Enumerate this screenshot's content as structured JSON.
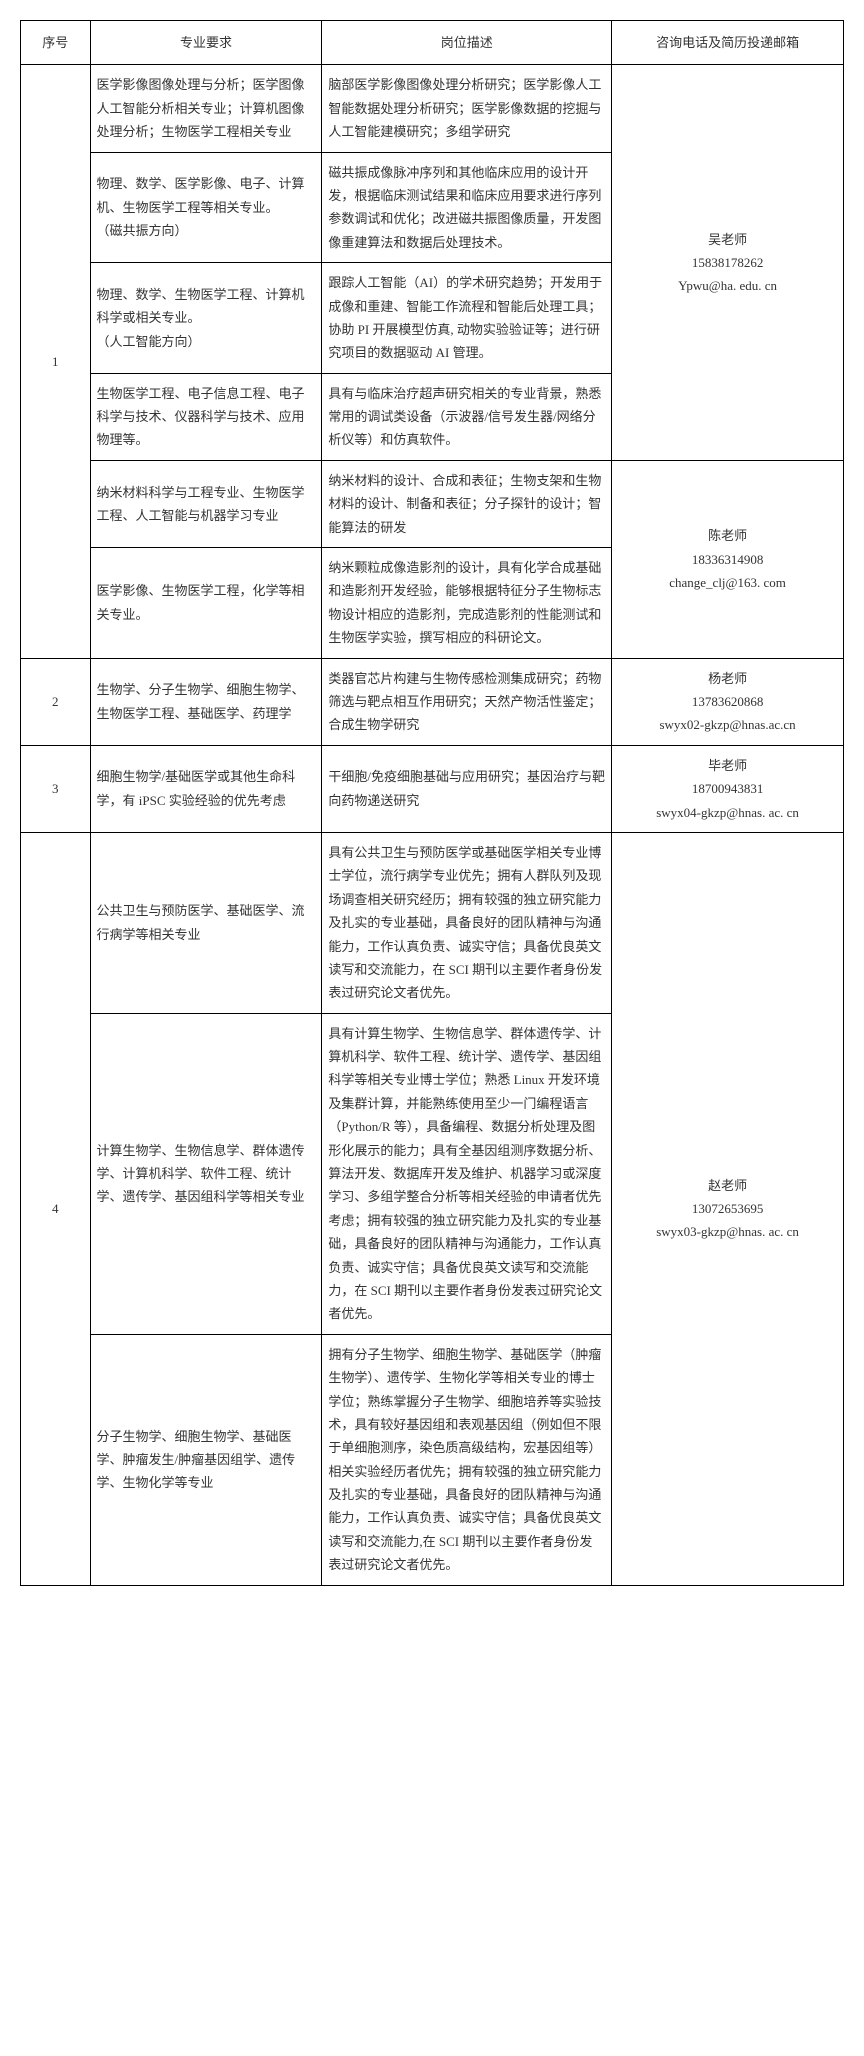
{
  "headers": {
    "idx": "序号",
    "major": "专业要求",
    "desc": "岗位描述",
    "contact": "咨询电话及简历投递邮箱"
  },
  "rows": [
    {
      "idx": "1",
      "contact": "吴老师\n15838178262\nYpwu@ha. edu. cn",
      "subs": [
        {
          "major": "医学影像图像处理与分析；医学图像人工智能分析相关专业；计算机图像处理分析；生物医学工程相关专业",
          "desc": "脑部医学影像图像处理分析研究；医学影像人工智能数据处理分析研究；医学影像数据的挖掘与人工智能建模研究；多组学研究"
        },
        {
          "major": "物理、数学、医学影像、电子、计算机、生物医学工程等相关专业。\n（磁共振方向）",
          "desc": "磁共振成像脉冲序列和其他临床应用的设计开发，根据临床测试结果和临床应用要求进行序列参数调试和优化；改进磁共振图像质量，开发图像重建算法和数据后处理技术。"
        },
        {
          "major": "物理、数学、生物医学工程、计算机科学或相关专业。\n（人工智能方向）",
          "desc": "跟踪人工智能（AI）的学术研究趋势；开发用于成像和重建、智能工作流程和智能后处理工具；协助 PI 开展模型仿真, 动物实验验证等；进行研究项目的数据驱动 AI 管理。"
        },
        {
          "major": "生物医学工程、电子信息工程、电子科学与技术、仪器科学与技术、应用物理等。",
          "desc": "具有与临床治疗超声研究相关的专业背景，熟悉常用的调试类设备（示波器/信号发生器/网络分析仪等）和仿真软件。"
        }
      ]
    },
    {
      "idx": "",
      "contact": "陈老师\n18336314908\nchange_clj@163. com",
      "subs": [
        {
          "major": "纳米材料科学与工程专业、生物医学工程、人工智能与机器学习专业",
          "desc": "纳米材料的设计、合成和表征；生物支架和生物材料的设计、制备和表征；分子探针的设计；智能算法的研发"
        },
        {
          "major": "医学影像、生物医学工程，化学等相关专业。",
          "desc": "纳米颗粒成像造影剂的设计，具有化学合成基础和造影剂开发经验，能够根据特征分子生物标志物设计相应的造影剂，完成造影剂的性能测试和生物医学实验，撰写相应的科研论文。"
        }
      ]
    },
    {
      "idx": "2",
      "contact": "杨老师\n13783620868\nswyx02-gkzp@hnas.ac.cn",
      "subs": [
        {
          "major": "生物学、分子生物学、细胞生物学、生物医学工程、基础医学、药理学",
          "desc": "类器官芯片构建与生物传感检测集成研究；药物筛选与靶点相互作用研究；天然产物活性鉴定；合成生物学研究"
        }
      ]
    },
    {
      "idx": "3",
      "contact": "毕老师\n18700943831\nswyx04-gkzp@hnas. ac. cn",
      "subs": [
        {
          "major": "细胞生物学/基础医学或其他生命科学，有 iPSC 实验经验的优先考虑",
          "desc": "干细胞/免疫细胞基础与应用研究；基因治疗与靶向药物递送研究"
        }
      ]
    },
    {
      "idx": "4",
      "contact": "赵老师\n13072653695\nswyx03-gkzp@hnas. ac. cn",
      "subs": [
        {
          "major": "公共卫生与预防医学、基础医学、流行病学等相关专业",
          "desc": "具有公共卫生与预防医学或基础医学相关专业博士学位，流行病学专业优先；拥有人群队列及现场调查相关研究经历；拥有较强的独立研究能力及扎实的专业基础，具备良好的团队精神与沟通能力，工作认真负责、诚实守信；具备优良英文读写和交流能力，在 SCI 期刊以主要作者身份发表过研究论文者优先。"
        },
        {
          "major": "计算生物学、生物信息学、群体遗传学、计算机科学、软件工程、统计学、遗传学、基因组科学等相关专业",
          "desc": "具有计算生物学、生物信息学、群体遗传学、计算机科学、软件工程、统计学、遗传学、基因组科学等相关专业博士学位；熟悉 Linux 开发环境及集群计算，并能熟练使用至少一门编程语言（Python/R 等），具备编程、数据分析处理及图形化展示的能力；具有全基因组测序数据分析、算法开发、数据库开发及维护、机器学习或深度学习、多组学整合分析等相关经验的申请者优先考虑；拥有较强的独立研究能力及扎实的专业基础，具备良好的团队精神与沟通能力，工作认真负责、诚实守信；具备优良英文读写和交流能力，在 SCI 期刊以主要作者身份发表过研究论文者优先。"
        },
        {
          "major": "分子生物学、细胞生物学、基础医学、肿瘤发生/肿瘤基因组学、遗传学、生物化学等专业",
          "desc": "拥有分子生物学、细胞生物学、基础医学（肿瘤生物学）、遗传学、生物化学等相关专业的博士学位；熟练掌握分子生物学、细胞培养等实验技术，具有较好基因组和表观基因组（例如但不限于单细胞测序，染色质高级结构，宏基因组等）相关实验经历者优先；拥有较强的独立研究能力及扎实的专业基础，具备良好的团队精神与沟通能力，工作认真负责、诚实守信；具备优良英文读写和交流能力,在 SCI 期刊以主要作者身份发表过研究论文者优先。"
        }
      ]
    }
  ]
}
